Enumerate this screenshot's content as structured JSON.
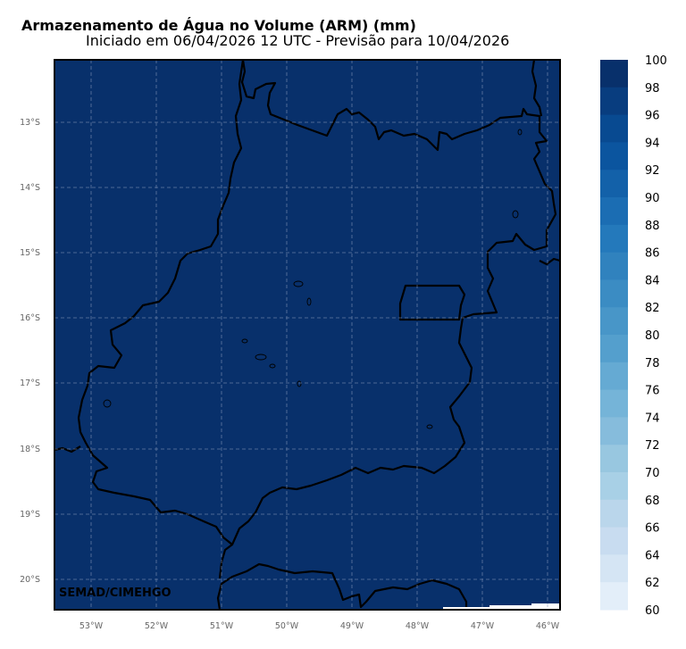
{
  "header": {
    "title": "Armazenamento de Água no Volume (ARM) (mm)",
    "subtitle": "Iniciado em 06/04/2026 12 UTC - Previsão para 10/04/2026"
  },
  "map": {
    "fill_color": "#08306b",
    "lon_ticks": [
      "53°W",
      "52°W",
      "51°W",
      "50°W",
      "49°W",
      "48°W",
      "47°W",
      "46°W"
    ],
    "lat_ticks": [
      "13°S",
      "14°S",
      "15°S",
      "16°S",
      "17°S",
      "18°S",
      "19°S",
      "20°S"
    ],
    "credit": "SEMAD/CIMEHGO"
  },
  "colorbar": {
    "labels": [
      "100",
      "98",
      "96",
      "94",
      "92",
      "90",
      "88",
      "86",
      "84",
      "82",
      "80",
      "78",
      "76",
      "74",
      "72",
      "70",
      "68",
      "66",
      "64",
      "62",
      "60"
    ],
    "colors": [
      "#08306b",
      "#083d7f",
      "#084a91",
      "#0b559f",
      "#1361a9",
      "#1b6db3",
      "#2479bb",
      "#3082be",
      "#3b8cc3",
      "#4896c8",
      "#549fcd",
      "#65aad3",
      "#75b4d8",
      "#86bcdc",
      "#98c7e0",
      "#a8d0e6",
      "#bad6eb",
      "#c8dcf0",
      "#d5e5f4",
      "#e3eef9",
      "#eef5fc"
    ]
  }
}
